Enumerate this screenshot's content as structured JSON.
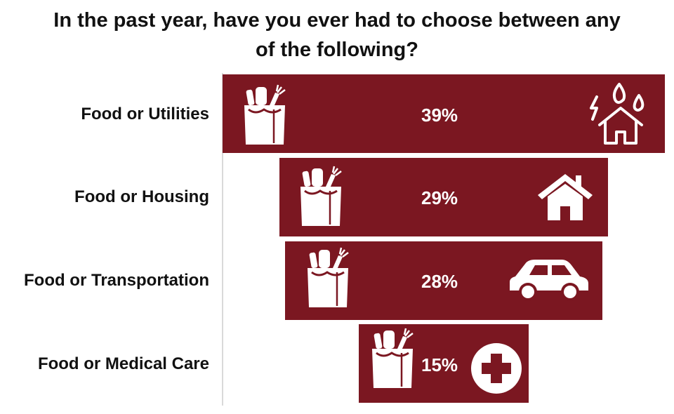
{
  "title": {
    "line1": "In the past year, have you ever had to choose between any",
    "line2": "of the following?"
  },
  "colors": {
    "bar": "#7b1721",
    "icon": "#ffffff",
    "text": "#111111"
  },
  "icons": [
    "grocery-bag-icon",
    "utilities-house-icon",
    "house-icon",
    "car-icon",
    "medical-cross-icon"
  ],
  "chart_data": {
    "type": "bar",
    "orientation": "horizontal-funnel",
    "categories": [
      "Food or Utilities",
      "Food or Housing",
      "Food or Transportation",
      "Food or Medical Care"
    ],
    "values": [
      39,
      29,
      28,
      15
    ],
    "value_labels": [
      "39%",
      "29%",
      "28%",
      "15%"
    ],
    "unit": "%",
    "title": "In the past year, have you ever had to choose between any of the following?",
    "grid": false,
    "legend": "none"
  }
}
